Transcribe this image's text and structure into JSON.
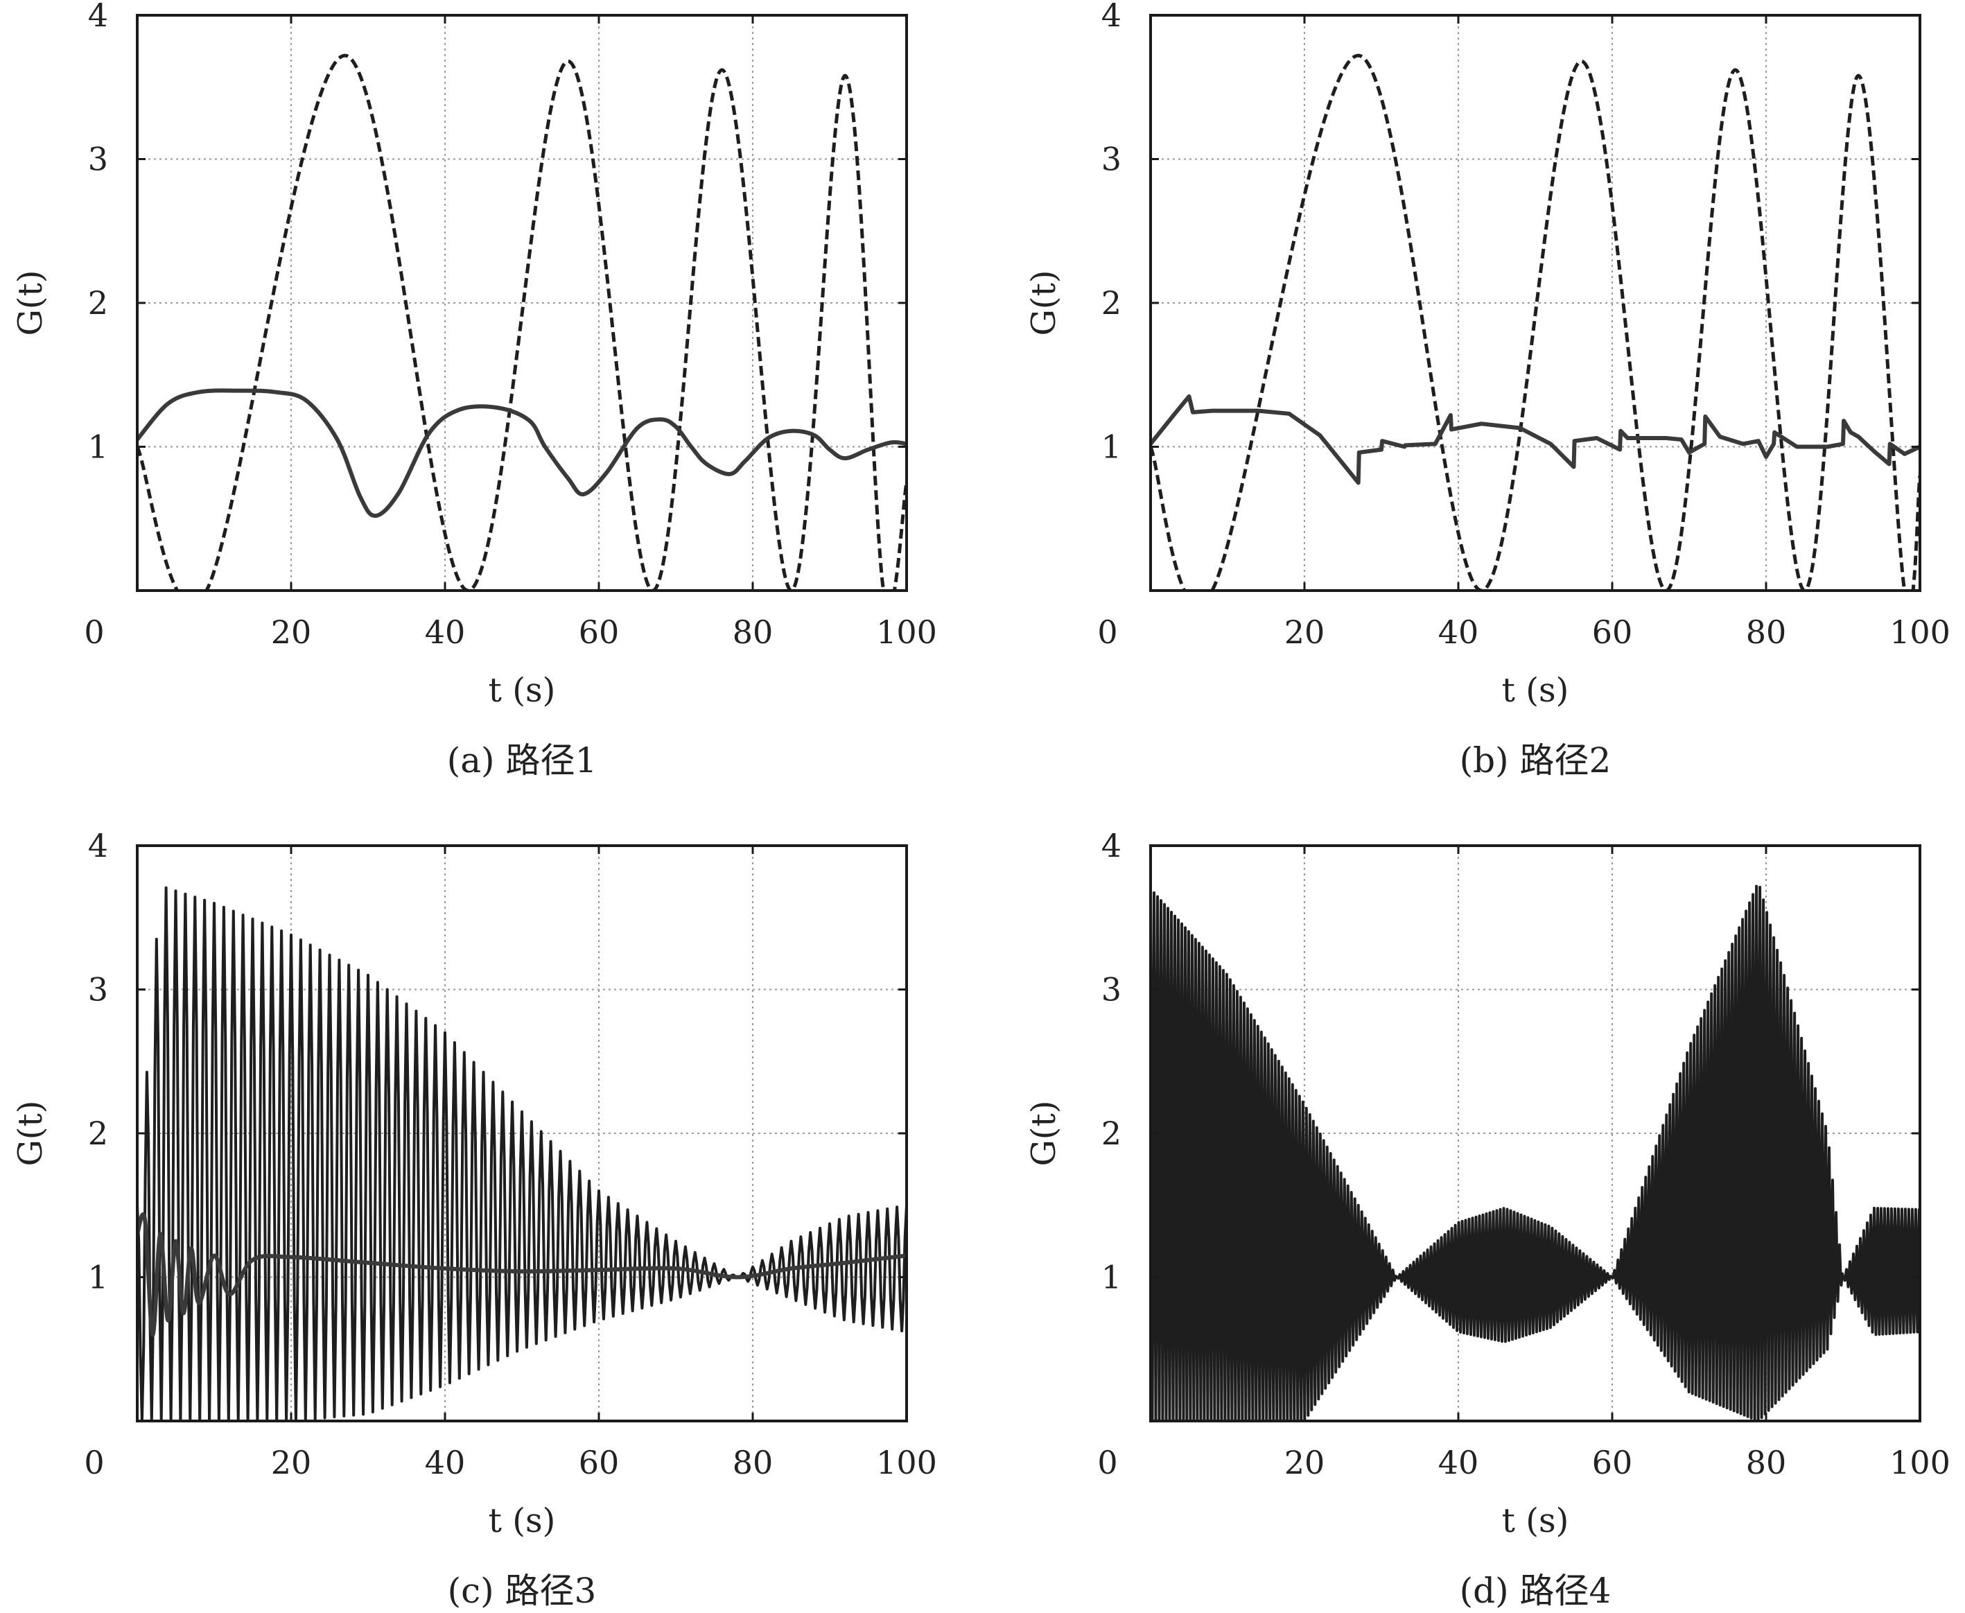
{
  "chart_data": [
    {
      "id": "a",
      "type": "line",
      "caption": "(a) 路径1",
      "xlabel": "t (s)",
      "ylabel": "G(t)",
      "xlim": [
        0,
        100
      ],
      "ylim": [
        0,
        4
      ],
      "xticks": [
        "0",
        "20",
        "40",
        "60",
        "80",
        "100"
      ],
      "yticks": [
        "1",
        "2",
        "3",
        "4"
      ],
      "grid": true,
      "series": [
        {
          "style": "dashed",
          "x": [
            0,
            9,
            27,
            43,
            56,
            67,
            76,
            85,
            92,
            97,
            100
          ],
          "y": [
            1.0,
            0.0,
            3.72,
            0.0,
            3.68,
            0.0,
            3.62,
            0.0,
            3.58,
            0.0,
            0.75
          ]
        },
        {
          "style": "solid",
          "x": [
            0,
            4,
            8,
            13,
            18,
            22,
            26,
            29,
            31,
            34,
            38,
            42,
            47,
            51,
            53,
            56,
            58,
            61,
            65,
            68,
            70,
            72,
            74,
            77,
            79,
            82,
            85,
            88,
            90,
            92,
            95,
            98,
            100
          ],
          "y": [
            1.05,
            1.3,
            1.38,
            1.39,
            1.38,
            1.32,
            1.05,
            0.65,
            0.52,
            0.68,
            1.1,
            1.26,
            1.27,
            1.18,
            1.0,
            0.78,
            0.67,
            0.82,
            1.13,
            1.19,
            1.14,
            1.0,
            0.88,
            0.81,
            0.9,
            1.06,
            1.11,
            1.08,
            0.98,
            0.92,
            0.98,
            1.03,
            1.02
          ]
        }
      ]
    },
    {
      "id": "b",
      "type": "line",
      "caption": "(b) 路径2",
      "xlabel": "t (s)",
      "ylabel": "G(t)",
      "xlim": [
        0,
        100
      ],
      "ylim": [
        0,
        4
      ],
      "xticks": [
        "0",
        "20",
        "40",
        "60",
        "80",
        "100"
      ],
      "yticks": [
        "1",
        "2",
        "3",
        "4"
      ],
      "grid": true,
      "series": [
        {
          "style": "dashed",
          "x": [
            0,
            8,
            27,
            43,
            56,
            67,
            76,
            85,
            92,
            98,
            100
          ],
          "y": [
            1.0,
            0.0,
            3.72,
            0.0,
            3.68,
            0.0,
            3.62,
            0.0,
            3.58,
            0.0,
            0.8
          ]
        },
        {
          "style": "solid",
          "x": [
            0,
            3,
            5,
            5.5,
            8,
            14,
            18,
            22,
            27,
            27.1,
            30,
            30.1,
            33,
            33.1,
            37,
            39,
            39.1,
            43,
            48,
            52,
            55,
            55.1,
            58,
            61,
            61.1,
            62,
            64,
            67,
            69,
            70,
            72,
            72.1,
            74,
            77,
            79,
            80,
            81,
            81.1,
            84,
            88,
            90,
            90.1,
            91,
            92,
            94,
            96,
            96.1,
            98,
            100
          ],
          "y": [
            1.02,
            1.22,
            1.35,
            1.24,
            1.25,
            1.25,
            1.23,
            1.08,
            0.75,
            0.96,
            0.98,
            1.04,
            1.0,
            1.01,
            1.02,
            1.22,
            1.12,
            1.16,
            1.13,
            1.02,
            0.86,
            1.04,
            1.06,
            0.98,
            1.11,
            1.06,
            1.06,
            1.06,
            1.05,
            0.96,
            1.02,
            1.21,
            1.07,
            1.02,
            1.04,
            0.93,
            1.02,
            1.1,
            1.0,
            1.0,
            1.02,
            1.18,
            1.1,
            1.07,
            0.97,
            0.88,
            1.02,
            0.95,
            1.0
          ]
        }
      ]
    },
    {
      "id": "c",
      "type": "line",
      "caption": "(c) 路径3",
      "xlabel": "t (s)",
      "ylabel": "G(t)",
      "xlim": [
        0,
        100
      ],
      "ylim": [
        0,
        4
      ],
      "xticks": [
        "0",
        "20",
        "40",
        "60",
        "80",
        "100"
      ],
      "yticks": [
        "1",
        "2",
        "3",
        "4"
      ],
      "grid": true,
      "series": [
        {
          "style": "dense",
          "period": 1.25,
          "envelope": {
            "t": [
              0,
              3,
              10,
              20,
              30,
              40,
              50,
              60,
              70,
              78,
              85,
              92,
              100
            ],
            "hi": [
              1.5,
              3.72,
              3.6,
              3.38,
              3.1,
              2.7,
              2.15,
              1.6,
              1.25,
              1.0,
              1.25,
              1.42,
              1.5
            ],
            "lo": [
              0.0,
              0.0,
              0.0,
              0.0,
              0.05,
              0.25,
              0.5,
              0.7,
              0.85,
              1.0,
              0.85,
              0.7,
              0.62
            ]
          }
        },
        {
          "style": "solid",
          "x": [
            0,
            1,
            2,
            3,
            4,
            5,
            6,
            7,
            8,
            10,
            12,
            15,
            20,
            30,
            40,
            50,
            60,
            70,
            78,
            85,
            92,
            100
          ],
          "y": [
            1.3,
            1.4,
            0.6,
            1.3,
            0.7,
            1.25,
            0.75,
            1.2,
            0.82,
            1.15,
            0.88,
            1.12,
            1.14,
            1.1,
            1.06,
            1.04,
            1.05,
            1.06,
            1.0,
            1.06,
            1.1,
            1.15
          ]
        }
      ]
    },
    {
      "id": "d",
      "type": "line",
      "caption": "(d) 路径4",
      "xlabel": "t (s)",
      "ylabel": "G(t)",
      "xlim": [
        0,
        100
      ],
      "ylim": [
        0,
        4
      ],
      "xticks": [
        "0",
        "20",
        "40",
        "60",
        "80",
        "100"
      ],
      "yticks": [
        "1",
        "2",
        "3",
        "4"
      ],
      "grid": true,
      "series": [
        {
          "style": "dense",
          "period": 0.45,
          "envelope": {
            "t": [
              0,
              10,
              20,
              32,
              40,
              46,
              52,
              60,
              70,
              79,
              88,
              90,
              94,
              100
            ],
            "hi": [
              3.7,
              3.1,
              2.2,
              1.0,
              1.38,
              1.48,
              1.35,
              1.0,
              2.6,
              3.75,
              2.0,
              1.0,
              1.48,
              1.47
            ],
            "lo": [
              0.0,
              0.0,
              0.0,
              1.0,
              0.62,
              0.55,
              0.65,
              1.0,
              0.2,
              0.0,
              0.5,
              1.0,
              0.6,
              0.62
            ]
          }
        }
      ]
    }
  ]
}
